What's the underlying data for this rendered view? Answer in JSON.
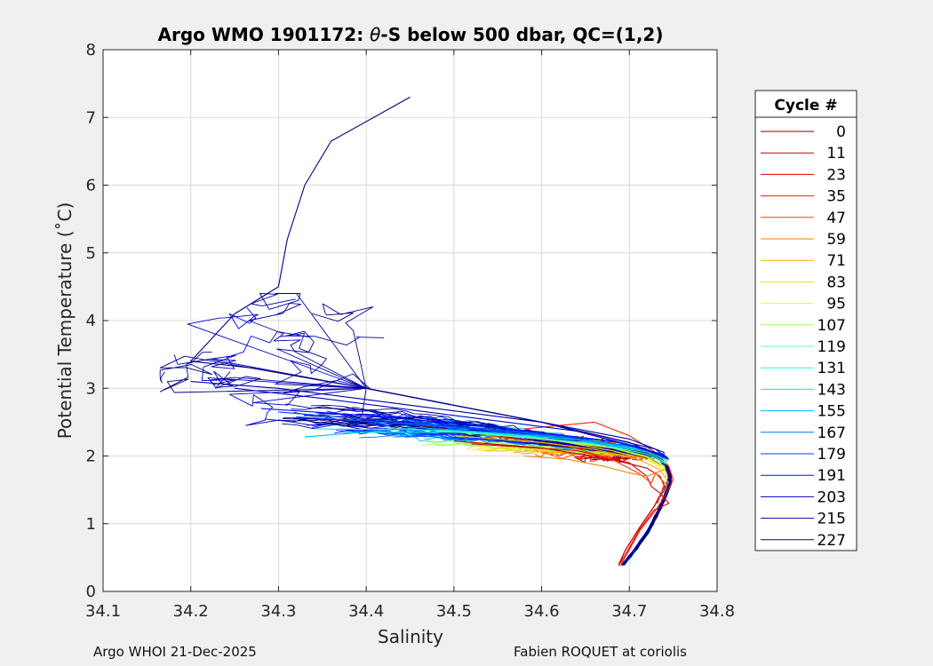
{
  "figure": {
    "footer_left": "Argo WHOI 21-Dec-2025",
    "footer_right": "Fabien ROQUET at coriolis"
  },
  "chart_data": {
    "type": "line",
    "title_prefix": "Argo WMO 1901172: ",
    "title_theta": "θ",
    "title_suffix": "-S below 500 dbar,  QC=(1,2)",
    "xlabel": "Salinity",
    "ylabel": "Potential Temperature (˚C)",
    "xlim": [
      34.1,
      34.8
    ],
    "ylim": [
      0,
      8
    ],
    "xticks": [
      "34.1",
      "34.2",
      "34.3",
      "34.4",
      "34.5",
      "34.6",
      "34.7",
      "34.8"
    ],
    "yticks": [
      "0",
      "1",
      "2",
      "3",
      "4",
      "5",
      "6",
      "7",
      "8"
    ],
    "grid": true,
    "legend": {
      "title": "Cycle #",
      "position": "right-outside",
      "entries": [
        "0",
        "11",
        "23",
        "35",
        "47",
        "59",
        "71",
        "83",
        "95",
        "107",
        "119",
        "131",
        "143",
        "155",
        "167",
        "179",
        "191",
        "203",
        "215",
        "227"
      ],
      "colors": [
        "#800000",
        "#c00000",
        "#dd0000",
        "#ff1a00",
        "#ff4000",
        "#ff8000",
        "#ffb000",
        "#ffdd00",
        "#e6ff19",
        "#a0ff5f",
        "#5fffa0",
        "#20ffdf",
        "#00e8ff",
        "#00b0ff",
        "#0070ff",
        "#0040ff",
        "#0010ff",
        "#0000d0",
        "#0000a0",
        "#000080"
      ]
    },
    "deep_branch": {
      "y": [
        0.35,
        0.6,
        0.9,
        1.2,
        1.45,
        1.62,
        1.8,
        2.0
      ],
      "s": [
        34.69,
        34.706,
        34.722,
        34.734,
        34.742,
        34.747,
        34.745,
        34.732
      ]
    },
    "series": [
      {
        "name": "0",
        "color_index": 0,
        "points": [
          [
            34.46,
            2.45
          ],
          [
            34.55,
            2.3
          ],
          [
            34.62,
            2.15
          ],
          [
            34.68,
            2.05
          ],
          [
            34.72,
            1.98
          ],
          [
            34.74,
            1.85
          ],
          [
            34.745,
            1.7
          ],
          [
            34.74,
            1.5
          ],
          [
            34.728,
            1.25
          ],
          [
            34.712,
            0.95
          ],
          [
            34.695,
            0.6
          ],
          [
            34.688,
            0.38
          ]
        ]
      },
      {
        "name": "11",
        "color_index": 1,
        "points": [
          [
            34.5,
            2.22
          ],
          [
            34.6,
            2.12
          ],
          [
            34.68,
            1.95
          ],
          [
            34.72,
            1.82
          ],
          [
            34.735,
            1.7
          ],
          [
            34.74,
            1.55
          ],
          [
            34.728,
            1.25
          ],
          [
            34.712,
            0.95
          ],
          [
            34.695,
            0.6
          ],
          [
            34.688,
            0.4
          ]
        ]
      },
      {
        "name": "23",
        "color_index": 2,
        "points": [
          [
            34.52,
            2.18
          ],
          [
            34.64,
            2.08
          ],
          [
            34.7,
            1.9
          ],
          [
            34.72,
            1.7
          ],
          [
            34.725,
            1.55
          ],
          [
            34.735,
            1.45
          ],
          [
            34.745,
            1.3
          ],
          [
            34.728,
            1.2
          ],
          [
            34.712,
            0.92
          ],
          [
            34.69,
            0.42
          ]
        ]
      },
      {
        "name": "35",
        "color_index": 3,
        "points": [
          [
            34.58,
            2.4
          ],
          [
            34.66,
            2.5
          ],
          [
            34.7,
            2.3
          ],
          [
            34.73,
            2.05
          ],
          [
            34.745,
            1.85
          ],
          [
            34.75,
            1.65
          ],
          [
            34.74,
            1.4
          ],
          [
            34.73,
            1.2
          ],
          [
            34.712,
            0.9
          ],
          [
            34.69,
            0.38
          ]
        ]
      },
      {
        "name": "47",
        "color_index": 4,
        "points": [
          [
            34.54,
            2.3
          ],
          [
            34.63,
            2.15
          ],
          [
            34.68,
            1.95
          ],
          [
            34.71,
            1.75
          ],
          [
            34.725,
            1.6
          ],
          [
            34.73,
            1.75
          ],
          [
            34.74,
            1.6
          ],
          [
            34.732,
            1.3
          ]
        ]
      },
      {
        "name": "59",
        "color_index": 5,
        "points": [
          [
            34.58,
            2.0
          ],
          [
            34.63,
            1.95
          ],
          [
            34.67,
            1.85
          ],
          [
            34.7,
            1.75
          ],
          [
            34.72,
            1.7
          ],
          [
            34.74,
            1.8
          ]
        ]
      },
      {
        "name": "71",
        "color_index": 6,
        "points": [
          [
            34.5,
            2.3
          ],
          [
            34.6,
            2.2
          ],
          [
            34.66,
            2.1
          ],
          [
            34.71,
            1.95
          ],
          [
            34.735,
            1.8
          ],
          [
            34.745,
            1.6
          ]
        ]
      },
      {
        "name": "83",
        "color_index": 7,
        "points": [
          [
            34.52,
            2.35
          ],
          [
            34.62,
            2.22
          ],
          [
            34.68,
            2.08
          ],
          [
            34.72,
            1.95
          ],
          [
            34.74,
            1.8
          ]
        ]
      },
      {
        "name": "95",
        "color_index": 8,
        "points": [
          [
            34.48,
            2.38
          ],
          [
            34.6,
            2.25
          ],
          [
            34.68,
            2.12
          ],
          [
            34.72,
            1.98
          ],
          [
            34.74,
            1.82
          ]
        ]
      },
      {
        "name": "107",
        "color_index": 9,
        "points": [
          [
            34.45,
            2.4
          ],
          [
            34.58,
            2.28
          ],
          [
            34.67,
            2.15
          ],
          [
            34.72,
            2.0
          ],
          [
            34.74,
            1.85
          ],
          [
            34.742,
            1.65
          ]
        ]
      },
      {
        "name": "119",
        "color_index": 10,
        "points": [
          [
            34.42,
            2.42
          ],
          [
            34.56,
            2.32
          ],
          [
            34.66,
            2.18
          ],
          [
            34.72,
            2.03
          ],
          [
            34.742,
            1.88
          ]
        ]
      },
      {
        "name": "131",
        "color_index": 11,
        "points": [
          [
            34.38,
            2.35
          ],
          [
            34.52,
            2.35
          ],
          [
            34.65,
            2.2
          ],
          [
            34.72,
            2.06
          ],
          [
            34.742,
            1.9
          ]
        ]
      },
      {
        "name": "143",
        "color_index": 12,
        "points": [
          [
            34.34,
            2.4
          ],
          [
            34.5,
            2.38
          ],
          [
            34.64,
            2.24
          ],
          [
            34.72,
            2.08
          ],
          [
            34.744,
            1.92
          ]
        ]
      },
      {
        "name": "155",
        "color_index": 13,
        "points": [
          [
            34.33,
            2.28
          ],
          [
            34.46,
            2.42
          ],
          [
            34.62,
            2.28
          ],
          [
            34.71,
            2.12
          ],
          [
            34.744,
            1.95
          ]
        ]
      },
      {
        "name": "167",
        "color_index": 14,
        "points": [
          [
            34.32,
            2.58
          ],
          [
            34.44,
            2.48
          ],
          [
            34.6,
            2.32
          ],
          [
            34.7,
            2.15
          ],
          [
            34.744,
            1.98
          ]
        ]
      },
      {
        "name": "179",
        "color_index": 15,
        "points": [
          [
            34.3,
            2.65
          ],
          [
            34.42,
            2.52
          ],
          [
            34.58,
            2.36
          ],
          [
            34.69,
            2.2
          ],
          [
            34.742,
            2.0
          ]
        ]
      },
      {
        "name": "191",
        "color_index": 16,
        "points": [
          [
            34.28,
            2.7
          ],
          [
            34.4,
            2.6
          ],
          [
            34.55,
            2.42
          ],
          [
            34.68,
            2.22
          ],
          [
            34.74,
            2.02
          ]
        ]
      },
      {
        "name": "203",
        "color_index": 17,
        "points": [
          [
            34.25,
            3.0
          ],
          [
            34.35,
            2.85
          ],
          [
            34.5,
            2.6
          ],
          [
            34.65,
            2.35
          ],
          [
            34.73,
            2.1
          ],
          [
            34.745,
            1.95
          ]
        ]
      },
      {
        "name": "215",
        "color_index": 18,
        "points": [
          [
            34.2,
            3.1
          ],
          [
            34.3,
            3.0
          ],
          [
            34.45,
            2.75
          ],
          [
            34.6,
            2.5
          ],
          [
            34.7,
            2.25
          ],
          [
            34.74,
            2.05
          ]
        ]
      },
      {
        "name": "227",
        "color_index": 19,
        "points": [
          [
            34.45,
            7.3
          ],
          [
            34.36,
            6.65
          ],
          [
            34.33,
            6.0
          ],
          [
            34.31,
            5.2
          ],
          [
            34.3,
            4.5
          ],
          [
            34.25,
            4.1
          ],
          [
            34.2,
            3.4
          ],
          [
            34.27,
            3.3
          ],
          [
            34.4,
            3.0
          ],
          [
            34.6,
            2.5
          ],
          [
            34.7,
            2.2
          ],
          [
            34.745,
            1.95
          ]
        ]
      }
    ],
    "navy_scatter_bounds": {
      "s": [
        34.165,
        34.46
      ],
      "y": [
        2.45,
        4.4
      ]
    }
  }
}
